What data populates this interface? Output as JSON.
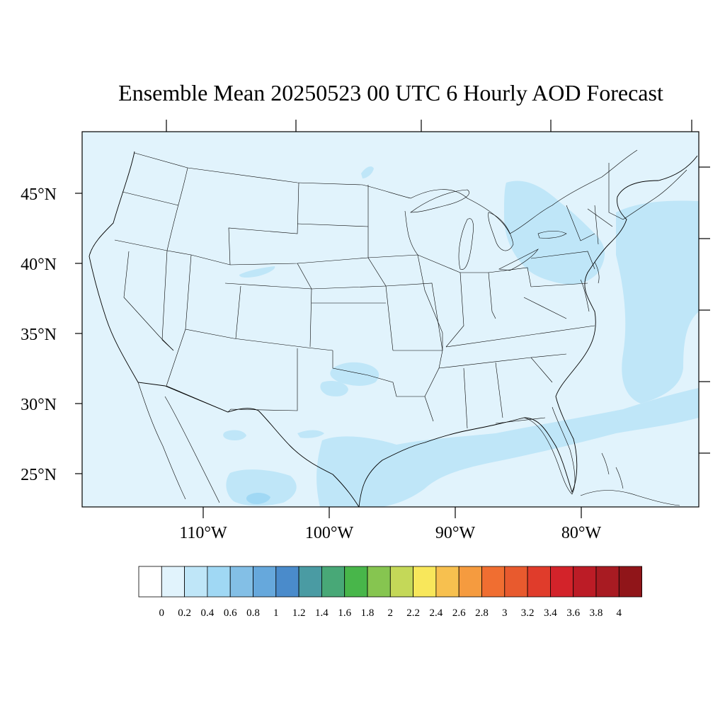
{
  "map": {
    "title": "Ensemble Mean 20250523 00 UTC 6 Hourly AOD Forecast",
    "lat_labels": [
      "45°N",
      "40°N",
      "35°N",
      "30°N",
      "25°N"
    ],
    "lon_labels": [
      "110°W",
      "100°W",
      "90°W",
      "80°W"
    ],
    "background_color": "#e1f3fc",
    "boundary_color": "#000000"
  },
  "colorbar": {
    "labels": [
      "0",
      "0.2",
      "0.4",
      "0.6",
      "0.8",
      "1",
      "1.2",
      "1.4",
      "1.6",
      "1.8",
      "2",
      "2.2",
      "2.4",
      "2.6",
      "2.8",
      "3",
      "3.2",
      "3.4",
      "3.6",
      "3.8",
      "4"
    ],
    "colors": [
      "#ffffff",
      "#e1f3fc",
      "#bfe6f8",
      "#a0d8f4",
      "#83bfe6",
      "#66a8dc",
      "#4a8bcb",
      "#4a9ba3",
      "#48a877",
      "#48b64a",
      "#86c550",
      "#c4d858",
      "#f8e75b",
      "#f7c04f",
      "#f59b3f",
      "#f06e31",
      "#e85a2e",
      "#e03c2b",
      "#d3232a",
      "#bc1c26",
      "#a81b22",
      "#901519"
    ]
  },
  "chart_data": {
    "type": "map",
    "title": "Ensemble Mean 20250523 00 UTC 6 Hourly AOD Forecast",
    "domain": {
      "lon_range": [
        -119,
        -71
      ],
      "lat_range": [
        22.5,
        49.5
      ]
    },
    "lat_ticks": [
      45,
      40,
      35,
      30,
      25
    ],
    "lon_ticks": [
      -110,
      -100,
      -90,
      -80
    ],
    "colorbar_levels": [
      0,
      0.2,
      0.4,
      0.6,
      0.8,
      1,
      1.2,
      1.4,
      1.6,
      1.8,
      2,
      2.2,
      2.4,
      2.6,
      2.8,
      3,
      3.2,
      3.4,
      3.6,
      3.8,
      4
    ],
    "dominant_range": [
      0,
      0.2
    ],
    "enhanced_regions": [
      {
        "region": "Gulf of Mexico / western Atlantic band",
        "aod_range": [
          0.2,
          0.4
        ]
      },
      {
        "region": "Pennsylvania / New York / Great Lakes",
        "aod_range": [
          0.2,
          0.4
        ]
      },
      {
        "region": "offshore northeastern US",
        "aod_range": [
          0.2,
          0.4
        ]
      },
      {
        "region": "northern Mexico (localized)",
        "aod_range": [
          0.4,
          0.6
        ]
      }
    ]
  }
}
